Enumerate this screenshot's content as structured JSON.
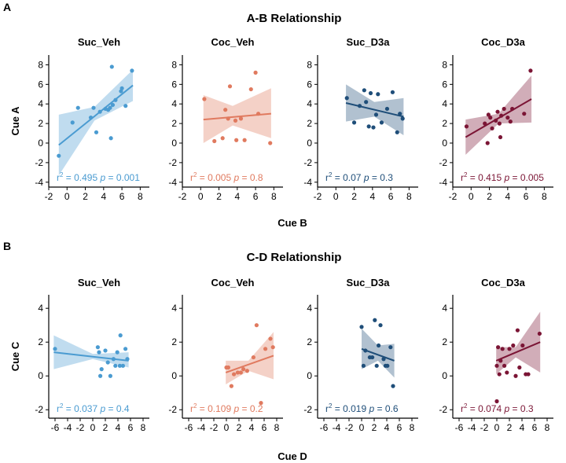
{
  "figure": {
    "panel_a_letter": "A",
    "panel_a_title": "A-B Relationship",
    "panel_b_letter": "B",
    "panel_b_title": "C-D Relationship",
    "xlabel_a": "Cue B",
    "ylabel_a": "Cue A",
    "xlabel_b": "Cue D",
    "ylabel_b": "Cue C"
  },
  "chart_data": [
    {
      "type": "scatter",
      "title": "Suc_Veh",
      "color": "#4a9bd1",
      "ylabel": "Cue A",
      "xlabel": "",
      "xlim": [
        -2,
        9
      ],
      "ylim": [
        -4.5,
        9
      ],
      "xticks": [
        "-2",
        "0",
        "2",
        "4",
        "6",
        "8"
      ],
      "yticks": [
        "-4",
        "-2",
        "0",
        "2",
        "4",
        "6",
        "8"
      ],
      "x": [
        -0.9,
        0.6,
        1.2,
        2.6,
        2.9,
        3.2,
        3.6,
        4.2,
        4.5,
        4.7,
        4.8,
        4.9,
        5.0,
        5.3,
        5.9,
        6.0,
        6.4,
        7.1
      ],
      "y": [
        -1.3,
        2.1,
        3.6,
        2.6,
        3.6,
        1.1,
        3.2,
        3.5,
        3.4,
        3.6,
        0.5,
        7.8,
        3.9,
        4.4,
        5.3,
        5.6,
        3.8,
        7.4
      ],
      "fit": [
        [
          -0.9,
          -0.2
        ],
        [
          7.2,
          5.9
        ]
      ],
      "band_upper": [
        [
          -0.9,
          2.9
        ],
        [
          3.0,
          3.7
        ],
        [
          7.2,
          7.5
        ]
      ],
      "band_lower": [
        [
          -0.9,
          -3.3
        ],
        [
          3.0,
          2.3
        ],
        [
          7.2,
          4.3
        ]
      ],
      "r2": "0.495",
      "p": "0.001"
    },
    {
      "type": "scatter",
      "title": "Coc_Veh",
      "color": "#e07a5f",
      "xlabel": "",
      "ylabel": "",
      "xlim": [
        -2,
        9
      ],
      "ylim": [
        -4.5,
        9
      ],
      "xticks": [
        "-2",
        "0",
        "2",
        "4",
        "6",
        "8"
      ],
      "yticks": [
        "-4",
        "-2",
        "0",
        "2",
        "4",
        "6",
        "8"
      ],
      "x": [
        0.4,
        1.5,
        2.4,
        2.7,
        3.0,
        3.2,
        3.8,
        3.9,
        4.4,
        4.8,
        5.5,
        6.0,
        6.3,
        7.6
      ],
      "y": [
        4.5,
        0.2,
        0.5,
        3.4,
        2.5,
        5.8,
        2.3,
        0.3,
        2.5,
        0.3,
        5.5,
        7.2,
        3.0,
        0.0
      ],
      "fit": [
        [
          0.3,
          2.4
        ],
        [
          7.7,
          3.0
        ]
      ],
      "band_upper": [
        [
          0.3,
          4.9
        ],
        [
          3.5,
          3.8
        ],
        [
          7.7,
          5.6
        ]
      ],
      "band_lower": [
        [
          0.3,
          0.0
        ],
        [
          3.5,
          1.8
        ],
        [
          7.7,
          0.5
        ]
      ],
      "r2": "0.005",
      "p": "0.8"
    },
    {
      "type": "scatter",
      "title": "Suc_D3a",
      "color": "#1f4e79",
      "xlabel": "",
      "ylabel": "",
      "xlim": [
        -2,
        9
      ],
      "ylim": [
        -4.5,
        9
      ],
      "xticks": [
        "-2",
        "0",
        "2",
        "4",
        "6",
        "8"
      ],
      "yticks": [
        "-4",
        "-2",
        "0",
        "2",
        "4",
        "6",
        "8"
      ],
      "x": [
        1.2,
        2.0,
        2.6,
        3.1,
        3.3,
        3.6,
        3.8,
        4.1,
        4.4,
        4.6,
        5.0,
        5.6,
        6.2,
        6.7,
        7.0,
        7.3
      ],
      "y": [
        4.6,
        2.1,
        3.8,
        5.4,
        4.2,
        1.7,
        5.1,
        1.6,
        2.9,
        5.0,
        2.1,
        3.5,
        5.2,
        1.1,
        3.0,
        2.5
      ],
      "fit": [
        [
          1.1,
          4.1
        ],
        [
          7.4,
          2.7
        ]
      ],
      "band_upper": [
        [
          1.1,
          6.0
        ],
        [
          4.2,
          4.2
        ],
        [
          7.4,
          4.6
        ]
      ],
      "band_lower": [
        [
          1.1,
          2.2
        ],
        [
          4.2,
          2.7
        ],
        [
          7.4,
          0.8
        ]
      ],
      "r2": "0.07",
      "p": "0.3"
    },
    {
      "type": "scatter",
      "title": "Coc_D3a",
      "color": "#7b1535",
      "xlabel": "",
      "ylabel": "",
      "xlim": [
        -2,
        9
      ],
      "ylim": [
        -4.5,
        9
      ],
      "xticks": [
        "-2",
        "0",
        "2",
        "4",
        "6",
        "8"
      ],
      "yticks": [
        "-4",
        "-2",
        "0",
        "2",
        "4",
        "6",
        "8"
      ],
      "x": [
        -0.5,
        1.5,
        1.8,
        1.9,
        2.1,
        2.3,
        2.7,
        2.9,
        3.1,
        3.2,
        3.3,
        3.6,
        4.0,
        4.3,
        4.5,
        5.8,
        6.5
      ],
      "y": [
        1.7,
        2.0,
        0.0,
        2.9,
        2.6,
        1.5,
        2.3,
        3.2,
        2.0,
        0.6,
        2.8,
        3.5,
        2.6,
        2.2,
        3.5,
        3.0,
        7.4
      ],
      "fit": [
        [
          -0.6,
          0.6
        ],
        [
          6.6,
          4.5
        ]
      ],
      "band_upper": [
        [
          -0.6,
          2.4
        ],
        [
          3.0,
          3.0
        ],
        [
          6.6,
          6.9
        ]
      ],
      "band_lower": [
        [
          -0.6,
          -1.2
        ],
        [
          3.0,
          2.0
        ],
        [
          6.6,
          2.1
        ]
      ],
      "r2": "0.415",
      "p": "0.005"
    },
    {
      "type": "scatter",
      "title": "Suc_Veh",
      "color": "#4a9bd1",
      "ylabel": "Cue C",
      "xlabel": "",
      "xlim": [
        -7,
        9
      ],
      "ylim": [
        -2.5,
        4.8
      ],
      "xticks": [
        "-6",
        "-4",
        "-2",
        "0",
        "2",
        "4",
        "6",
        "8"
      ],
      "yticks": [
        "-2",
        "0",
        "2",
        "4"
      ],
      "x": [
        -6.0,
        0.8,
        1.0,
        1.2,
        1.4,
        2.0,
        2.4,
        2.8,
        3.3,
        3.6,
        3.9,
        4.3,
        4.4,
        4.8,
        5.2,
        5.5
      ],
      "y": [
        1.6,
        1.7,
        1.4,
        0.0,
        0.4,
        1.5,
        0.8,
        0.0,
        1.0,
        0.6,
        1.4,
        0.6,
        2.4,
        0.6,
        1.6,
        1.0
      ],
      "fit": [
        [
          -6.2,
          1.4
        ],
        [
          5.7,
          0.9
        ]
      ],
      "band_upper": [
        [
          -6.2,
          2.4
        ],
        [
          0.0,
          1.3
        ],
        [
          5.7,
          1.4
        ]
      ],
      "band_lower": [
        [
          -6.2,
          0.4
        ],
        [
          0.0,
          1.0
        ],
        [
          5.7,
          0.5
        ]
      ],
      "r2": "0.037",
      "p": "0.4"
    },
    {
      "type": "scatter",
      "title": "Coc_Veh",
      "color": "#e07a5f",
      "xlabel": "",
      "ylabel": "",
      "xlim": [
        -7,
        9
      ],
      "ylim": [
        -2.5,
        4.8
      ],
      "xticks": [
        "-6",
        "-4",
        "-2",
        "0",
        "2",
        "4",
        "6",
        "8"
      ],
      "yticks": [
        "-2",
        "0",
        "2",
        "4"
      ],
      "x": [
        0.0,
        0.3,
        0.8,
        1.2,
        1.8,
        2.3,
        2.7,
        3.3,
        4.3,
        4.8,
        5.5,
        6.2,
        7.0,
        7.4
      ],
      "y": [
        0.5,
        0.5,
        -0.6,
        0.1,
        0.2,
        0.2,
        0.4,
        0.3,
        1.1,
        3.0,
        -1.6,
        1.6,
        2.2,
        1.7
      ],
      "fit": [
        [
          -0.1,
          0.2
        ],
        [
          7.5,
          1.2
        ]
      ],
      "band_upper": [
        [
          -0.1,
          0.9
        ],
        [
          3.5,
          0.9
        ],
        [
          7.5,
          2.6
        ]
      ],
      "band_lower": [
        [
          -0.1,
          -0.5
        ],
        [
          3.5,
          0.3
        ],
        [
          7.5,
          -0.2
        ]
      ],
      "r2": "0.109",
      "p": "0.2"
    },
    {
      "type": "scatter",
      "title": "Suc_D3a",
      "color": "#1f4e79",
      "xlabel": "",
      "ylabel": "",
      "xlim": [
        -7,
        9
      ],
      "ylim": [
        -2.5,
        4.8
      ],
      "xticks": [
        "-6",
        "-4",
        "-2",
        "0",
        "2",
        "4",
        "6",
        "8"
      ],
      "yticks": [
        "-2",
        "0",
        "2",
        "4"
      ],
      "x": [
        0.0,
        0.3,
        0.6,
        1.3,
        1.7,
        2.1,
        2.4,
        2.7,
        3.0,
        3.5,
        3.8,
        4.1,
        4.6,
        5.0
      ],
      "y": [
        2.9,
        0.6,
        1.5,
        1.1,
        1.1,
        3.3,
        0.6,
        1.8,
        3.0,
        1.0,
        0.6,
        0.6,
        1.7,
        -0.6
      ],
      "fit": [
        [
          0.0,
          1.6
        ],
        [
          5.2,
          0.9
        ]
      ],
      "band_upper": [
        [
          0.0,
          2.8
        ],
        [
          2.6,
          1.8
        ],
        [
          5.2,
          1.9
        ]
      ],
      "band_lower": [
        [
          0.0,
          0.4
        ],
        [
          2.6,
          0.9
        ],
        [
          5.2,
          -0.1
        ]
      ],
      "r2": "0.019",
      "p": "0.6"
    },
    {
      "type": "scatter",
      "title": "Coc_D3a",
      "color": "#7b1535",
      "xlabel": "",
      "ylabel": "",
      "xlim": [
        -7,
        9
      ],
      "ylim": [
        -2.5,
        4.8
      ],
      "xticks": [
        "-6",
        "-4",
        "-2",
        "0",
        "2",
        "4",
        "6",
        "8"
      ],
      "yticks": [
        "-2",
        "0",
        "2",
        "4"
      ],
      "x": [
        0.0,
        0.0,
        0.2,
        0.4,
        0.6,
        0.9,
        1.2,
        1.6,
        2.0,
        2.6,
        3.0,
        3.3,
        3.6,
        4.1,
        4.6,
        5.0,
        6.8
      ],
      "y": [
        -1.5,
        0.6,
        1.7,
        0.1,
        0.9,
        1.6,
        0.6,
        0.2,
        1.6,
        1.8,
        0.0,
        2.7,
        0.5,
        1.8,
        0.1,
        0.1,
        2.5
      ],
      "fit": [
        [
          -0.1,
          0.9
        ],
        [
          6.9,
          2.0
        ]
      ],
      "band_upper": [
        [
          -0.1,
          1.7
        ],
        [
          3.0,
          1.7
        ],
        [
          6.9,
          3.8
        ]
      ],
      "band_lower": [
        [
          -0.1,
          0.1
        ],
        [
          3.0,
          1.1
        ],
        [
          6.9,
          0.2
        ]
      ],
      "r2": "0.074",
      "p": "0.3"
    }
  ]
}
